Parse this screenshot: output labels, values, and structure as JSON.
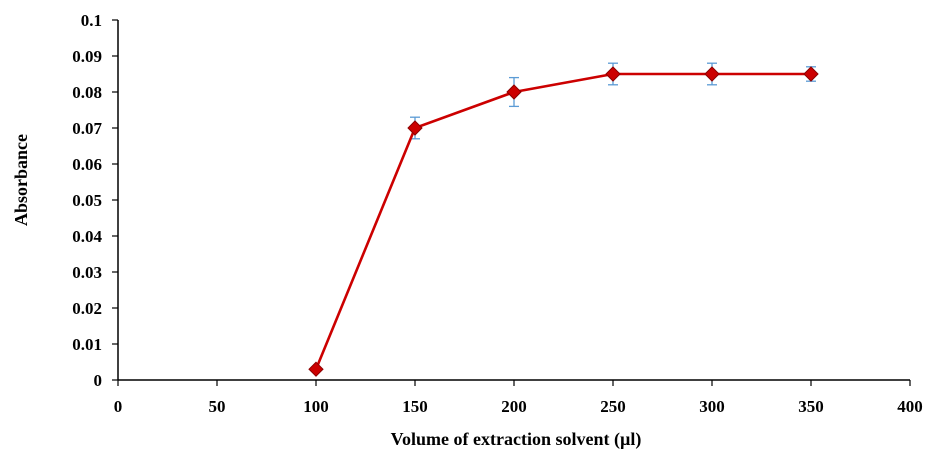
{
  "chart_data": {
    "type": "line",
    "xlabel": "Volume of extraction solvent (µl)",
    "ylabel": "Absorbance",
    "xlim": [
      0,
      400
    ],
    "ylim": [
      0,
      0.1
    ],
    "x_ticks": [
      "0",
      "50",
      "100",
      "150",
      "200",
      "250",
      "300",
      "350",
      "400"
    ],
    "y_ticks": [
      "0",
      "0.01",
      "0.02",
      "0.03",
      "0.04",
      "0.05",
      "0.06",
      "0.07",
      "0.08",
      "0.09",
      "0.1"
    ],
    "grid": false,
    "legend": "none",
    "series": [
      {
        "x": [
          100,
          150,
          200,
          250,
          300,
          350
        ],
        "y": [
          0.003,
          0.07,
          0.08,
          0.085,
          0.085,
          0.085
        ],
        "error": [
          0,
          0.003,
          0.004,
          0.003,
          0.003,
          0.002
        ],
        "line_color": "#cc0000",
        "marker": "diamond",
        "marker_color": "#cc0000",
        "error_bar_color": "#5b9bd5"
      }
    ]
  }
}
